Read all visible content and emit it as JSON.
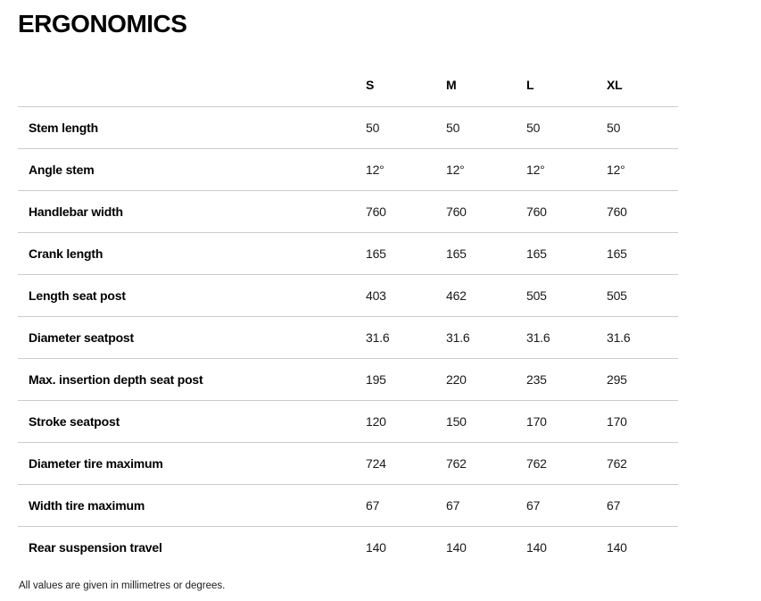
{
  "page": {
    "title": "ERGONOMICS",
    "footnote": "All values are given in millimetres or degrees."
  },
  "table": {
    "columns": [
      "S",
      "M",
      "L",
      "XL"
    ],
    "rows": [
      {
        "label": "Stem length",
        "values": [
          "50",
          "50",
          "50",
          "50"
        ]
      },
      {
        "label": "Angle stem",
        "values": [
          "12°",
          "12°",
          "12°",
          "12°"
        ]
      },
      {
        "label": "Handlebar width",
        "values": [
          "760",
          "760",
          "760",
          "760"
        ]
      },
      {
        "label": "Crank length",
        "values": [
          "165",
          "165",
          "165",
          "165"
        ]
      },
      {
        "label": "Length seat post",
        "values": [
          "403",
          "462",
          "505",
          "505"
        ]
      },
      {
        "label": "Diameter seatpost",
        "values": [
          "31.6",
          "31.6",
          "31.6",
          "31.6"
        ]
      },
      {
        "label": "Max. insertion depth seat post",
        "values": [
          "195",
          "220",
          "235",
          "295"
        ]
      },
      {
        "label": "Stroke seatpost",
        "values": [
          "120",
          "150",
          "170",
          "170"
        ]
      },
      {
        "label": "Diameter tire maximum",
        "values": [
          "724",
          "762",
          "762",
          "762"
        ]
      },
      {
        "label": "Width tire maximum",
        "values": [
          "67",
          "67",
          "67",
          "67"
        ]
      },
      {
        "label": "Rear suspension travel",
        "values": [
          "140",
          "140",
          "140",
          "140"
        ]
      }
    ]
  },
  "colors": {
    "background": "#ffffff",
    "text": "#000000",
    "divider": "#cbcbcb"
  }
}
